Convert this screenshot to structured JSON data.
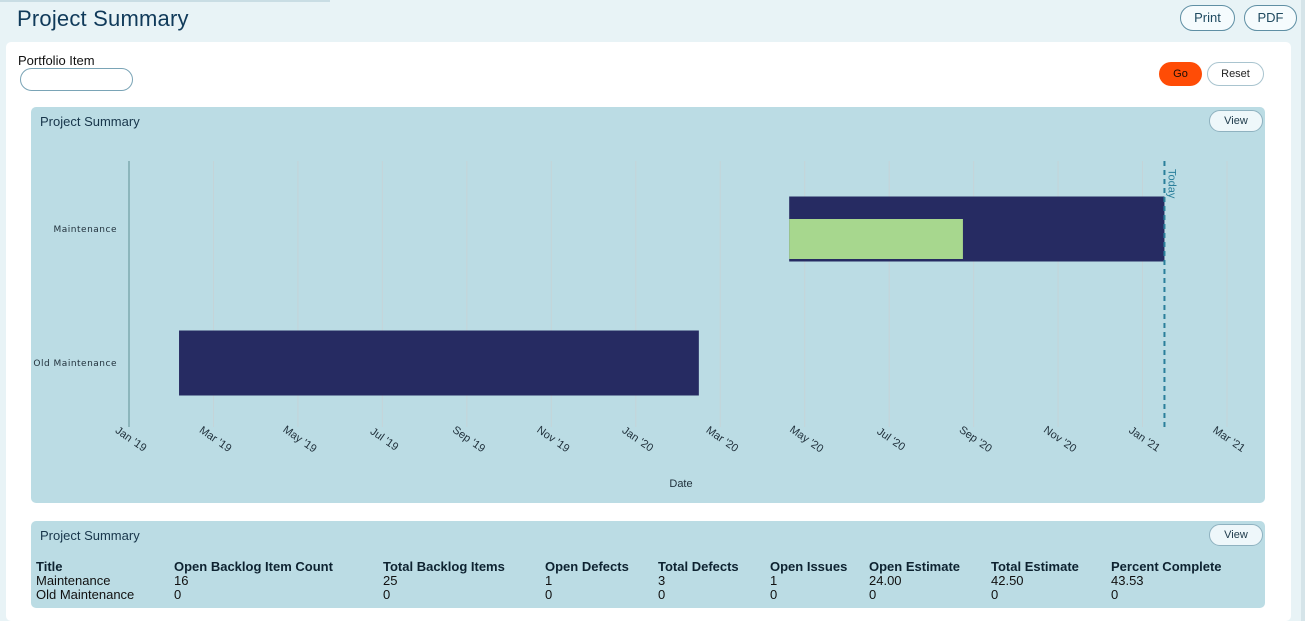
{
  "header": {
    "title": "Project Summary",
    "print_label": "Print",
    "pdf_label": "PDF"
  },
  "filters": {
    "portfolio_label": "Portfolio Item",
    "portfolio_value": "",
    "go_label": "Go",
    "reset_label": "Reset"
  },
  "gantt_card": {
    "title": "Project Summary",
    "view_label": "View"
  },
  "chart_data": {
    "type": "gantt",
    "xlabel": "Date",
    "x_ticks": [
      "Jan '19",
      "Mar '19",
      "May '19",
      "Jul '19",
      "Sep '19",
      "Nov '19",
      "Jan '20",
      "Mar '20",
      "May '20",
      "Jul '20",
      "Sep '20",
      "Nov '20",
      "Jan '21",
      "Mar '21"
    ],
    "x_range": [
      "2019-01-01",
      "2021-03-01"
    ],
    "grid": true,
    "today": {
      "label": "Today",
      "date": "2021-01-15"
    },
    "rows": [
      {
        "label": "Maintenance",
        "bars": [
          {
            "start": "2020-04-20",
            "end": "2021-01-15",
            "color": "#262b62",
            "track": "full"
          },
          {
            "start": "2020-04-20",
            "end": "2020-08-23",
            "color": "#a7d78e",
            "track": "progress"
          }
        ]
      },
      {
        "label": "Old Maintenance",
        "bars": [
          {
            "start": "2019-02-06",
            "end": "2020-02-15",
            "color": "#262b62",
            "track": "full"
          }
        ]
      }
    ]
  },
  "table_card": {
    "title": "Project Summary",
    "view_label": "View",
    "columns": [
      "Title",
      "Open Backlog Item Count",
      "Total Backlog Items",
      "Open Defects",
      "Total Defects",
      "Open Issues",
      "Open Estimate",
      "Total Estimate",
      "Percent Complete"
    ],
    "rows": [
      [
        "Maintenance",
        "16",
        "25",
        "1",
        "3",
        "1",
        "24.00",
        "42.50",
        "43.53"
      ],
      [
        "Old Maintenance",
        "0",
        "0",
        "0",
        "0",
        "0",
        "0",
        "0",
        "0"
      ]
    ]
  },
  "colors": {
    "accent": "#ff4c06",
    "bar": "#262b62",
    "progress": "#a7d78e",
    "card": "#bbdce4",
    "today_line": "#2a7f9b"
  }
}
